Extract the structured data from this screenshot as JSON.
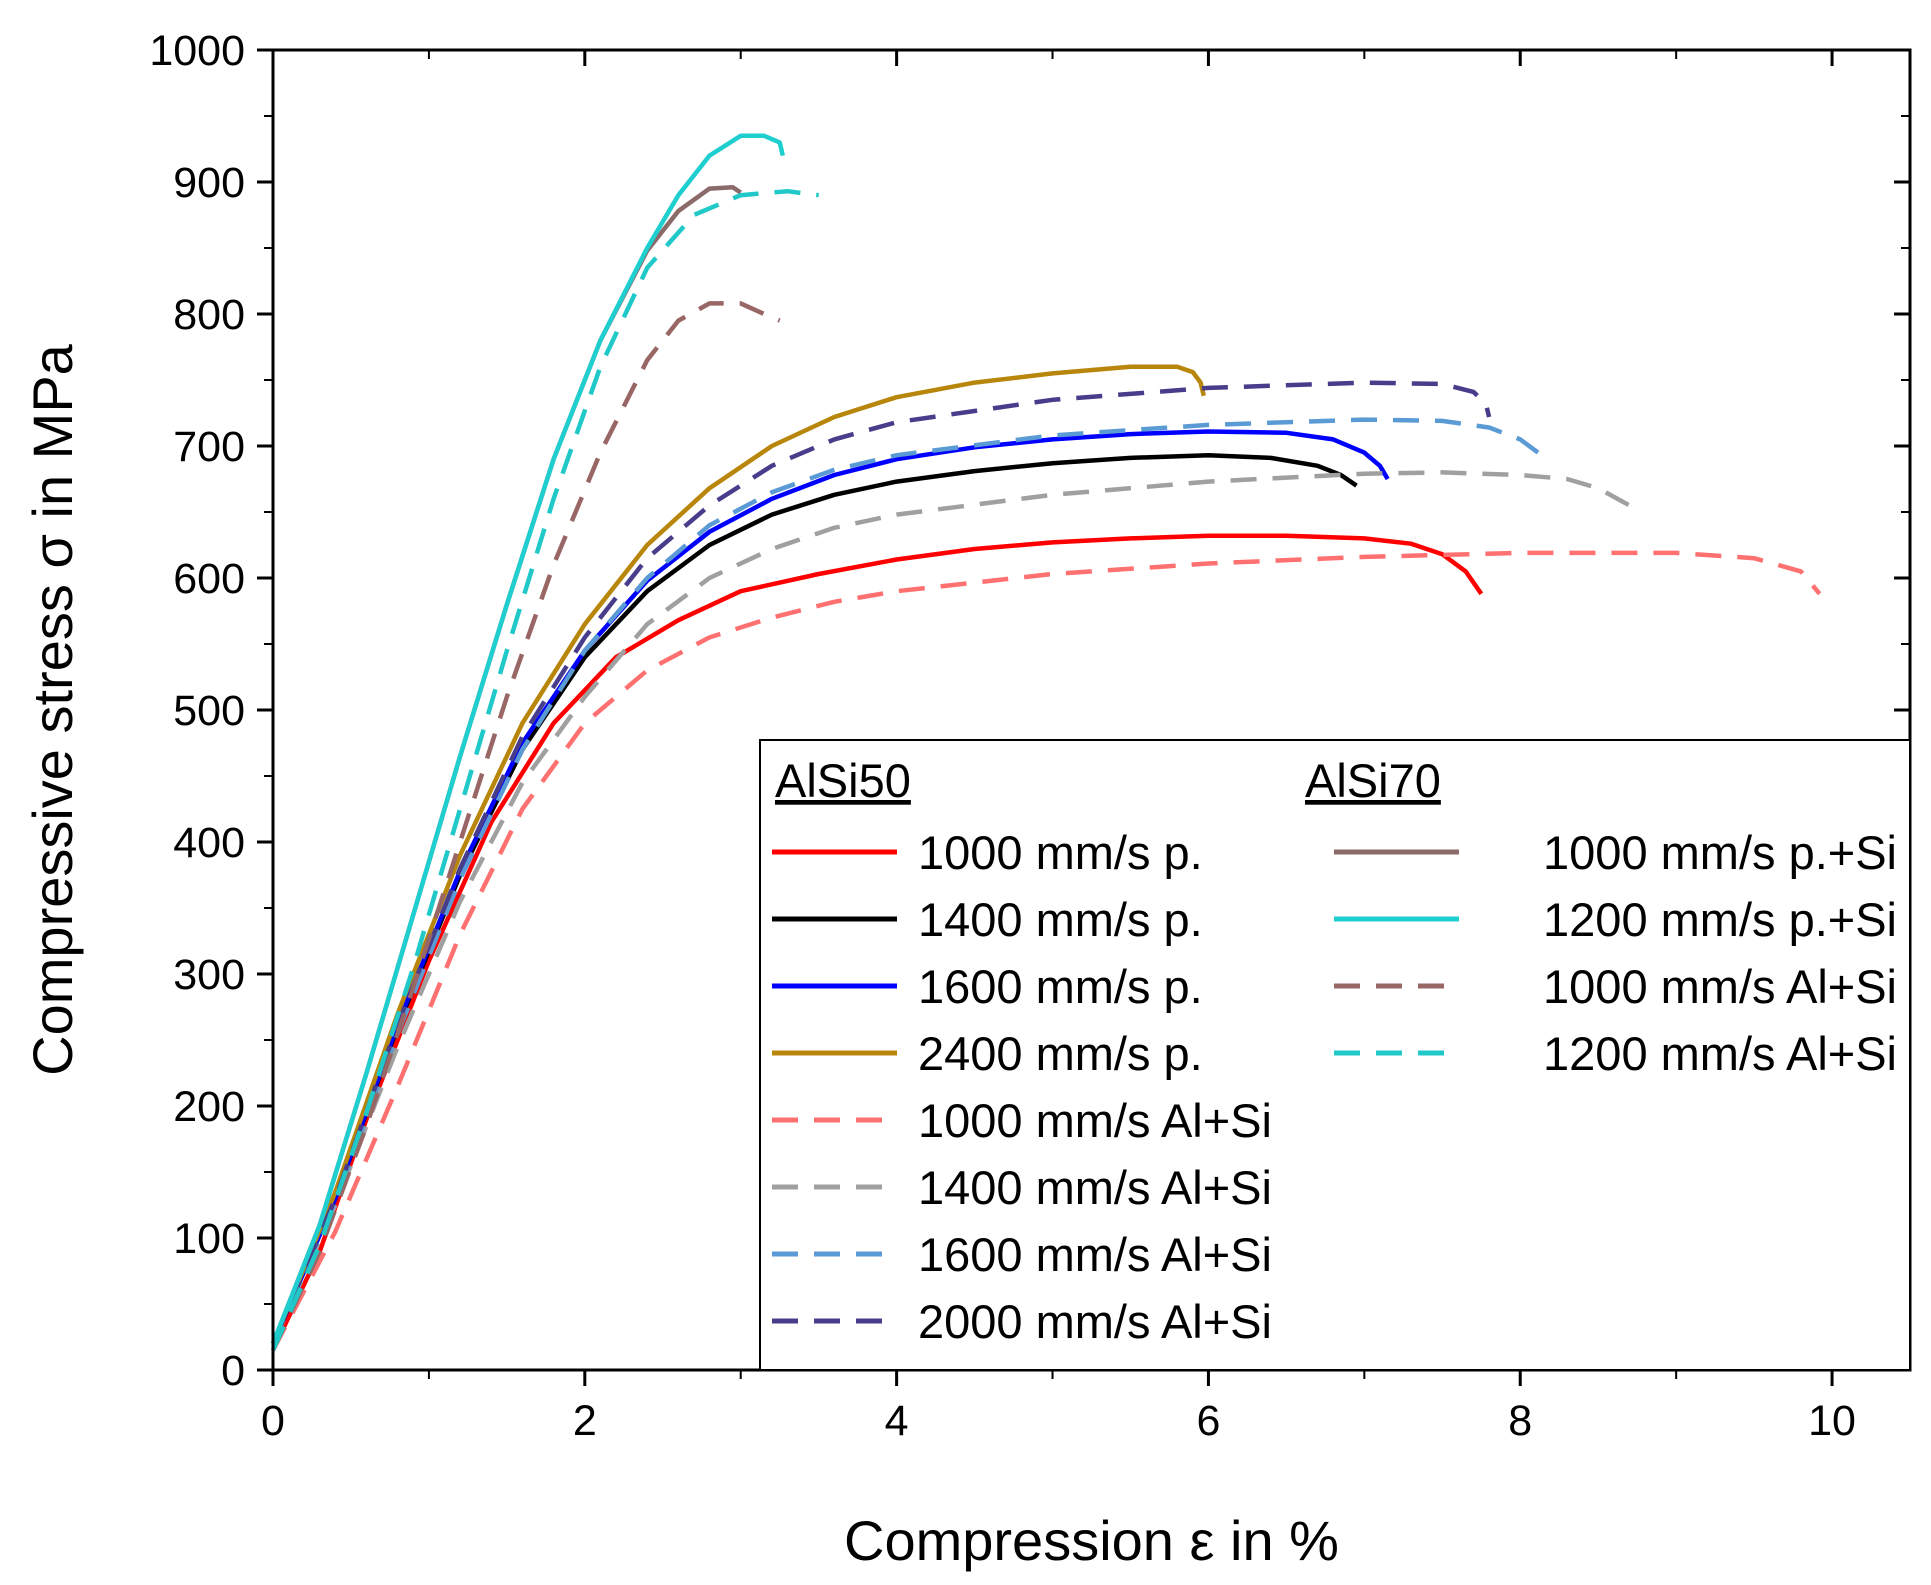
{
  "chart_data": {
    "type": "line",
    "xlabel": "Compression ε in %",
    "ylabel": "Compressive stress σ in MPa",
    "xlim": [
      0,
      10.5
    ],
    "ylim": [
      0,
      1000
    ],
    "xticks": [
      "0",
      "2",
      "4",
      "6",
      "8",
      "10"
    ],
    "yticks": [
      "0",
      "100",
      "200",
      "300",
      "400",
      "500",
      "600",
      "700",
      "800",
      "900",
      "1000"
    ],
    "grid": false,
    "legend": {
      "placement": "bottom-right",
      "groups": [
        {
          "heading": "AlSi50",
          "entries": [
            "1000 mm/s p.",
            "1400 mm/s p.",
            "1600 mm/s p.",
            "2400 mm/s p.",
            "1000 mm/s Al+Si",
            "1400 mm/s Al+Si",
            "1600 mm/s Al+Si",
            "2000 mm/s Al+Si"
          ]
        },
        {
          "heading": "AlSi70",
          "entries": [
            "1000 mm/s p.+Si",
            "1200 mm/s p.+Si",
            "1000 mm/s Al+Si",
            "1200 mm/s Al+Si"
          ]
        }
      ]
    },
    "series": [
      {
        "name": "1000 mm/s p.",
        "group": "AlSi50",
        "color": "#ff0000",
        "dash": "solid",
        "points": [
          [
            0,
            15
          ],
          [
            0.3,
            90
          ],
          [
            0.6,
            190
          ],
          [
            1.0,
            310
          ],
          [
            1.4,
            415
          ],
          [
            1.8,
            490
          ],
          [
            2.2,
            540
          ],
          [
            2.6,
            568
          ],
          [
            3.0,
            590
          ],
          [
            3.5,
            603
          ],
          [
            4.0,
            614
          ],
          [
            4.5,
            622
          ],
          [
            5.0,
            627
          ],
          [
            5.5,
            630
          ],
          [
            6.0,
            632
          ],
          [
            6.5,
            632
          ],
          [
            7.0,
            630
          ],
          [
            7.3,
            626
          ],
          [
            7.5,
            618
          ],
          [
            7.65,
            605
          ],
          [
            7.75,
            588
          ]
        ]
      },
      {
        "name": "1400 mm/s p.",
        "group": "AlSi50",
        "color": "#000000",
        "dash": "solid",
        "points": [
          [
            0,
            20
          ],
          [
            0.4,
            130
          ],
          [
            0.8,
            260
          ],
          [
            1.2,
            375
          ],
          [
            1.6,
            470
          ],
          [
            2.0,
            540
          ],
          [
            2.4,
            590
          ],
          [
            2.8,
            625
          ],
          [
            3.2,
            648
          ],
          [
            3.6,
            663
          ],
          [
            4.0,
            673
          ],
          [
            4.5,
            681
          ],
          [
            5.0,
            687
          ],
          [
            5.5,
            691
          ],
          [
            6.0,
            693
          ],
          [
            6.4,
            691
          ],
          [
            6.7,
            685
          ],
          [
            6.85,
            678
          ],
          [
            6.95,
            670
          ]
        ]
      },
      {
        "name": "1600 mm/s p.",
        "group": "AlSi50",
        "color": "#0000ff",
        "dash": "solid",
        "points": [
          [
            0,
            20
          ],
          [
            0.4,
            130
          ],
          [
            0.8,
            262
          ],
          [
            1.2,
            378
          ],
          [
            1.6,
            475
          ],
          [
            2.0,
            545
          ],
          [
            2.4,
            598
          ],
          [
            2.8,
            635
          ],
          [
            3.2,
            660
          ],
          [
            3.6,
            678
          ],
          [
            4.0,
            690
          ],
          [
            4.5,
            699
          ],
          [
            5.0,
            705
          ],
          [
            5.5,
            709
          ],
          [
            6.0,
            711
          ],
          [
            6.5,
            710
          ],
          [
            6.8,
            705
          ],
          [
            7.0,
            695
          ],
          [
            7.1,
            685
          ],
          [
            7.15,
            675
          ]
        ]
      },
      {
        "name": "2400 mm/s p.",
        "group": "AlSi50",
        "color": "#b8860b",
        "dash": "solid",
        "points": [
          [
            0,
            20
          ],
          [
            0.4,
            135
          ],
          [
            0.8,
            270
          ],
          [
            1.2,
            390
          ],
          [
            1.6,
            490
          ],
          [
            2.0,
            565
          ],
          [
            2.4,
            625
          ],
          [
            2.8,
            668
          ],
          [
            3.2,
            700
          ],
          [
            3.6,
            722
          ],
          [
            4.0,
            737
          ],
          [
            4.5,
            748
          ],
          [
            5.0,
            755
          ],
          [
            5.5,
            760
          ],
          [
            5.8,
            760
          ],
          [
            5.9,
            756
          ],
          [
            5.95,
            748
          ],
          [
            5.97,
            738
          ]
        ]
      },
      {
        "name": "1000 mm/s Al+Si",
        "group": "AlSi50",
        "color": "#ff7070",
        "dash": "dashed",
        "points": [
          [
            0,
            15
          ],
          [
            0.4,
            105
          ],
          [
            0.8,
            215
          ],
          [
            1.2,
            330
          ],
          [
            1.6,
            425
          ],
          [
            2.0,
            490
          ],
          [
            2.4,
            530
          ],
          [
            2.8,
            555
          ],
          [
            3.2,
            570
          ],
          [
            3.6,
            582
          ],
          [
            4.0,
            590
          ],
          [
            5.0,
            603
          ],
          [
            6.0,
            611
          ],
          [
            7.0,
            616
          ],
          [
            8.0,
            619
          ],
          [
            9.0,
            619
          ],
          [
            9.5,
            615
          ],
          [
            9.8,
            605
          ],
          [
            9.92,
            588
          ]
        ]
      },
      {
        "name": "1400 mm/s Al+Si",
        "group": "AlSi50",
        "color": "#a0a0a0",
        "dash": "dashed",
        "points": [
          [
            0,
            20
          ],
          [
            0.4,
            125
          ],
          [
            0.8,
            245
          ],
          [
            1.2,
            355
          ],
          [
            1.6,
            445
          ],
          [
            2.0,
            510
          ],
          [
            2.4,
            565
          ],
          [
            2.8,
            600
          ],
          [
            3.2,
            622
          ],
          [
            3.6,
            638
          ],
          [
            4.0,
            648
          ],
          [
            5.0,
            663
          ],
          [
            6.0,
            673
          ],
          [
            7.0,
            679
          ],
          [
            7.5,
            680
          ],
          [
            8.0,
            678
          ],
          [
            8.3,
            675
          ],
          [
            8.5,
            668
          ],
          [
            8.7,
            655
          ]
        ]
      },
      {
        "name": "1600 mm/s Al+Si",
        "group": "AlSi50",
        "color": "#5b9bd5",
        "dash": "dashed",
        "points": [
          [
            0,
            20
          ],
          [
            0.4,
            128
          ],
          [
            0.8,
            255
          ],
          [
            1.2,
            372
          ],
          [
            1.6,
            470
          ],
          [
            2.0,
            545
          ],
          [
            2.4,
            600
          ],
          [
            2.8,
            640
          ],
          [
            3.2,
            665
          ],
          [
            3.6,
            682
          ],
          [
            4.0,
            693
          ],
          [
            5.0,
            708
          ],
          [
            6.0,
            716
          ],
          [
            7.0,
            720
          ],
          [
            7.5,
            719
          ],
          [
            7.8,
            714
          ],
          [
            8.0,
            705
          ],
          [
            8.15,
            692
          ]
        ]
      },
      {
        "name": "2000 mm/s Al+Si",
        "group": "AlSi50",
        "color": "#483d8b",
        "dash": "dashed",
        "points": [
          [
            0,
            20
          ],
          [
            0.4,
            130
          ],
          [
            0.8,
            262
          ],
          [
            1.2,
            380
          ],
          [
            1.6,
            480
          ],
          [
            2.0,
            555
          ],
          [
            2.4,
            615
          ],
          [
            2.8,
            655
          ],
          [
            3.2,
            685
          ],
          [
            3.6,
            705
          ],
          [
            4.0,
            718
          ],
          [
            5.0,
            735
          ],
          [
            6.0,
            744
          ],
          [
            7.0,
            748
          ],
          [
            7.5,
            747
          ],
          [
            7.7,
            741
          ],
          [
            7.78,
            732
          ],
          [
            7.8,
            722
          ]
        ]
      },
      {
        "name": "1000 mm/s p.+Si",
        "group": "AlSi70",
        "color": "#8b6a6a",
        "dash": "solid",
        "points": [
          [
            0,
            20
          ],
          [
            0.3,
            110
          ],
          [
            0.6,
            225
          ],
          [
            0.9,
            345
          ],
          [
            1.2,
            465
          ],
          [
            1.5,
            580
          ],
          [
            1.8,
            690
          ],
          [
            2.1,
            780
          ],
          [
            2.4,
            848
          ],
          [
            2.6,
            878
          ],
          [
            2.8,
            895
          ],
          [
            2.95,
            896
          ],
          [
            3.0,
            892
          ]
        ]
      },
      {
        "name": "1200 mm/s p.+Si",
        "group": "AlSi70",
        "color": "#1fcfcf",
        "dash": "solid",
        "points": [
          [
            0,
            20
          ],
          [
            0.3,
            110
          ],
          [
            0.6,
            225
          ],
          [
            0.9,
            345
          ],
          [
            1.2,
            465
          ],
          [
            1.5,
            580
          ],
          [
            1.8,
            690
          ],
          [
            2.1,
            780
          ],
          [
            2.4,
            850
          ],
          [
            2.6,
            890
          ],
          [
            2.8,
            920
          ],
          [
            3.0,
            935
          ],
          [
            3.15,
            935
          ],
          [
            3.25,
            930
          ],
          [
            3.27,
            920
          ]
        ]
      },
      {
        "name": "1000 mm/s Al+Si",
        "group": "AlSi70",
        "color": "#996666",
        "dash": "dashed",
        "points": [
          [
            0,
            15
          ],
          [
            0.3,
            90
          ],
          [
            0.6,
            185
          ],
          [
            0.9,
            290
          ],
          [
            1.2,
            400
          ],
          [
            1.5,
            510
          ],
          [
            1.8,
            610
          ],
          [
            2.1,
            695
          ],
          [
            2.4,
            765
          ],
          [
            2.6,
            795
          ],
          [
            2.8,
            808
          ],
          [
            3.0,
            808
          ],
          [
            3.15,
            800
          ],
          [
            3.25,
            795
          ]
        ]
      },
      {
        "name": "1200 mm/s Al+Si",
        "group": "AlSi70",
        "color": "#20c8c8",
        "dash": "dashed",
        "points": [
          [
            0,
            15
          ],
          [
            0.3,
            95
          ],
          [
            0.6,
            195
          ],
          [
            0.9,
            305
          ],
          [
            1.2,
            425
          ],
          [
            1.5,
            545
          ],
          [
            1.8,
            660
          ],
          [
            2.1,
            760
          ],
          [
            2.4,
            835
          ],
          [
            2.7,
            875
          ],
          [
            3.0,
            890
          ],
          [
            3.3,
            893
          ],
          [
            3.5,
            890
          ]
        ]
      }
    ]
  }
}
